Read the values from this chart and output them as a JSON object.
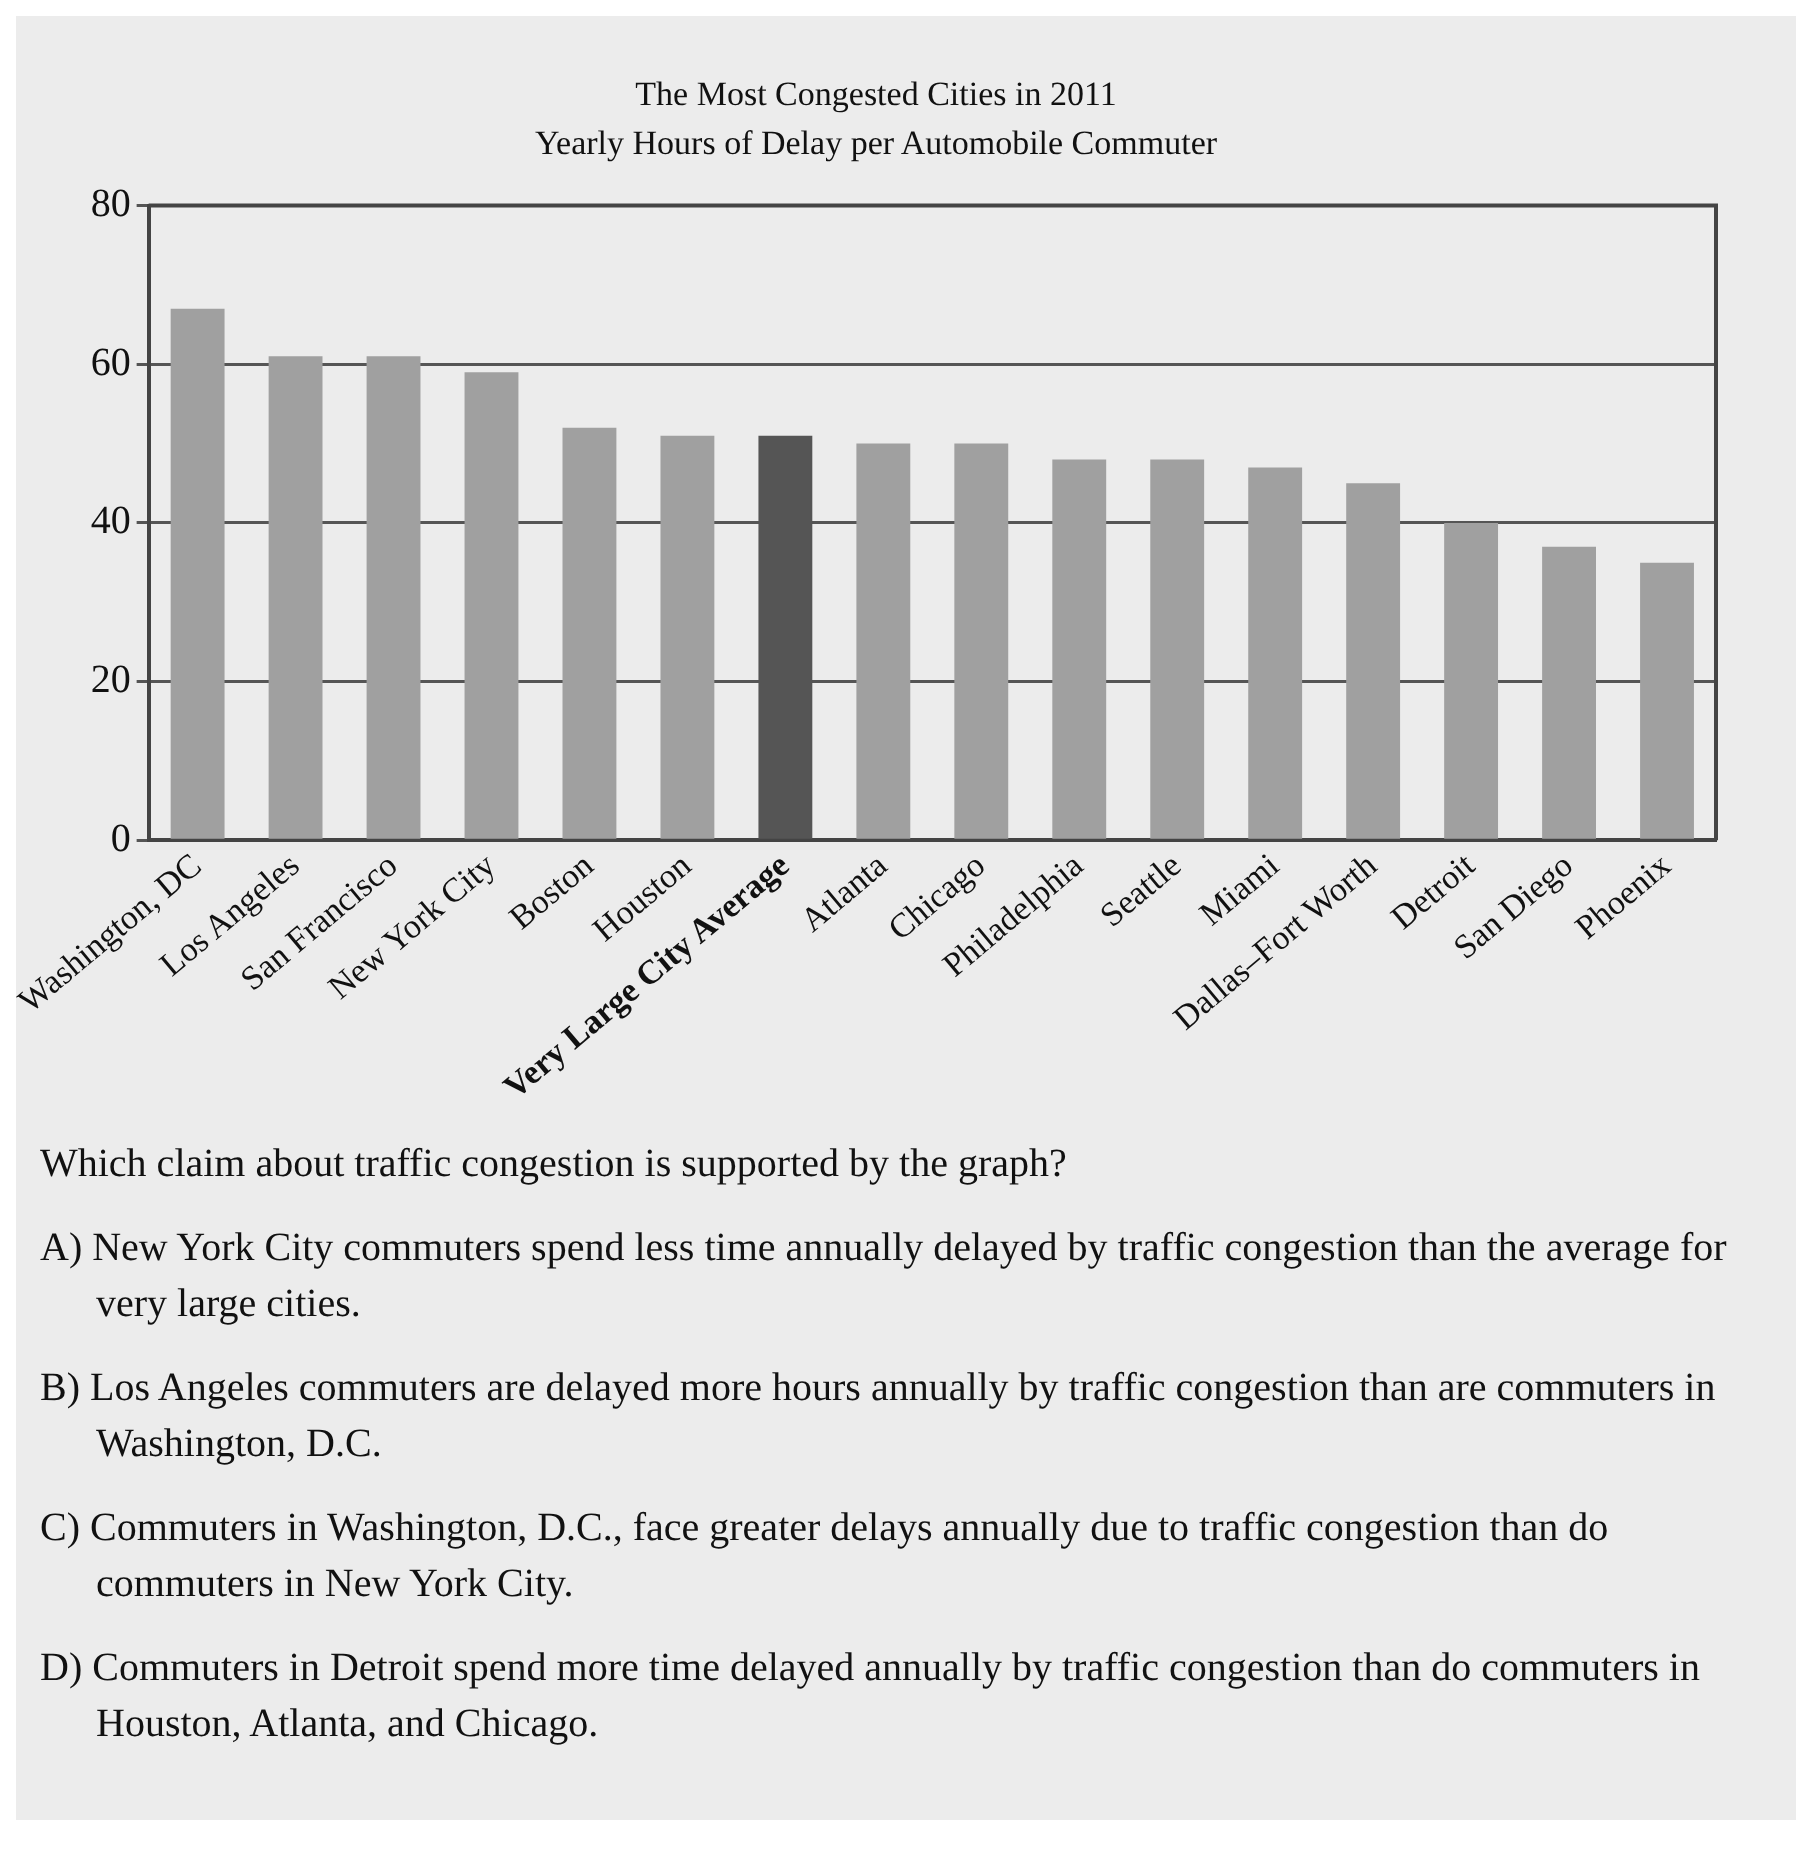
{
  "chart_data": {
    "type": "bar",
    "title": "The Most Congested Cities in 2011",
    "subtitle": "Yearly Hours of Delay per Automobile Commuter",
    "categories": [
      "Washington, DC",
      "Los Angeles",
      "San Francisco",
      "New York City",
      "Boston",
      "Houston",
      "Very Large City Average",
      "Atlanta",
      "Chicago",
      "Philadelphia",
      "Seattle",
      "Miami",
      "Dallas–Fort Worth",
      "Detroit",
      "San Diego",
      "Phoenix"
    ],
    "values": [
      67,
      61,
      61,
      59,
      52,
      51,
      51,
      50,
      50,
      48,
      48,
      47,
      45,
      40,
      37,
      35
    ],
    "colors": [
      "#a0a0a0",
      "#a0a0a0",
      "#a0a0a0",
      "#a0a0a0",
      "#a0a0a0",
      "#a0a0a0",
      "#555555",
      "#a0a0a0",
      "#a0a0a0",
      "#a0a0a0",
      "#a0a0a0",
      "#a0a0a0",
      "#a0a0a0",
      "#a0a0a0",
      "#a0a0a0",
      "#a0a0a0"
    ],
    "ylim": [
      0,
      80
    ],
    "yticks": [
      0,
      20,
      40,
      60,
      80
    ],
    "grid": "y",
    "legend": false,
    "annotations": [
      "Which claim about traffic congestion is supported by the graph?",
      "A) New York City commuters spend less time annually delayed by traffic congestion than the average for very large cities.",
      "B) Los Angeles commuters are delayed more hours annually by traffic congestion than are commuters in Washington, D.C.",
      "C) Commuters in Washington, D.C., face greater delays annually due to traffic congestion than do commuters in New York City.",
      "D) Commuters in Detroit spend more time delayed annually by traffic congestion than do commuters in Houston, Atlanta, and Chicago."
    ]
  }
}
